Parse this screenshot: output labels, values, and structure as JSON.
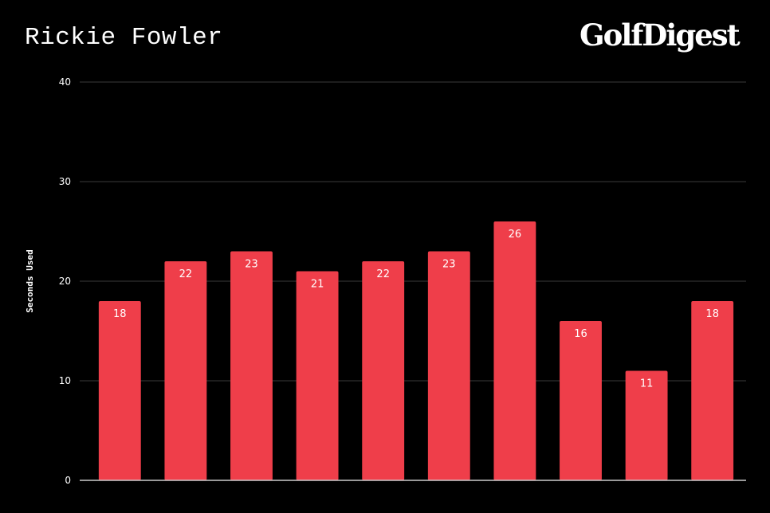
{
  "brand": {
    "logo_text": "GolfDigest"
  },
  "colors": {
    "background": "#000000",
    "bar": "#ef3e4a",
    "grid": "#3a3a3a",
    "axis": "#cccccc",
    "text": "#ffffff"
  },
  "chart_data": {
    "type": "bar",
    "title": "Rickie Fowler",
    "xlabel": "",
    "ylabel": "Seconds Used",
    "ylim": [
      0,
      40
    ],
    "yticks": [
      0,
      10,
      20,
      30,
      40
    ],
    "grid": true,
    "categories": [
      "",
      "",
      "",
      "",
      "",
      "",
      "",
      "",
      "",
      ""
    ],
    "values": [
      18,
      22,
      23,
      21,
      22,
      23,
      26,
      16,
      11,
      18
    ],
    "data_labels": true
  }
}
